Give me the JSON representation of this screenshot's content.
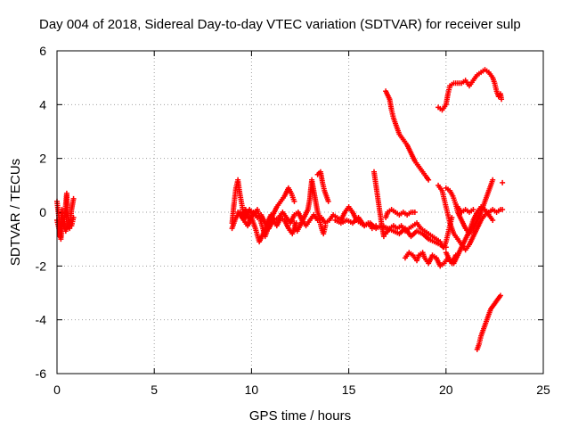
{
  "chart_data": {
    "type": "scatter",
    "title": "Day 004 of 2018, Sidereal Day-to-day VTEC variation (SDTVAR) for receiver sulp",
    "xlabel": "GPS time / hours",
    "ylabel": "SDTVAR / TECUs",
    "xlim": [
      0,
      25
    ],
    "ylim": [
      -6,
      6
    ],
    "xticks": [
      0,
      5,
      10,
      15,
      20,
      25
    ],
    "yticks": [
      -6,
      -4,
      -2,
      0,
      2,
      4,
      6
    ],
    "grid": true,
    "marker": "plus",
    "color": "#ff0000",
    "tracks": [
      [
        [
          0.0,
          0.4
        ],
        [
          0.1,
          -0.2
        ],
        [
          0.15,
          -0.9
        ],
        [
          0.25,
          0.1
        ],
        [
          0.35,
          -0.5
        ],
        [
          0.45,
          0.3
        ],
        [
          0.5,
          0.7
        ],
        [
          0.55,
          -0.1
        ],
        [
          0.65,
          -0.6
        ],
        [
          0.75,
          0.1
        ],
        [
          0.85,
          0.5
        ]
      ],
      [
        [
          0.0,
          -0.3
        ],
        [
          0.1,
          -0.6
        ],
        [
          0.2,
          -1.0
        ],
        [
          0.3,
          -0.4
        ],
        [
          0.45,
          -0.7
        ],
        [
          0.6,
          -0.3
        ],
        [
          0.75,
          -0.5
        ],
        [
          0.85,
          -0.2
        ]
      ],
      [
        [
          9.0,
          -0.4
        ],
        [
          9.1,
          0.3
        ],
        [
          9.2,
          0.9
        ],
        [
          9.3,
          1.2
        ],
        [
          9.4,
          0.7
        ],
        [
          9.55,
          0.1
        ],
        [
          9.7,
          -0.2
        ],
        [
          9.9,
          0.1
        ],
        [
          10.1,
          -0.1
        ],
        [
          10.3,
          0.1
        ],
        [
          10.5,
          -0.4
        ],
        [
          10.7,
          -0.9
        ],
        [
          10.9,
          -0.5
        ],
        [
          11.1,
          -0.1
        ],
        [
          11.3,
          0.2
        ],
        [
          11.5,
          0.4
        ],
        [
          11.7,
          0.6
        ],
        [
          11.9,
          0.9
        ],
        [
          12.05,
          0.7
        ],
        [
          12.2,
          0.4
        ]
      ],
      [
        [
          9.0,
          -0.6
        ],
        [
          9.2,
          -0.2
        ],
        [
          9.4,
          0.0
        ],
        [
          9.6,
          -0.3
        ],
        [
          9.8,
          -0.5
        ],
        [
          10.0,
          -0.2
        ],
        [
          10.2,
          -0.6
        ],
        [
          10.4,
          -1.1
        ],
        [
          10.6,
          -0.8
        ],
        [
          10.8,
          -0.4
        ],
        [
          11.0,
          -0.1
        ],
        [
          11.2,
          -0.3
        ],
        [
          11.4,
          -0.2
        ],
        [
          11.6,
          0.0
        ],
        [
          11.8,
          -0.2
        ],
        [
          12.0,
          -0.4
        ],
        [
          12.2,
          -0.1
        ],
        [
          12.4,
          0.0
        ],
        [
          12.6,
          -0.3
        ],
        [
          12.8,
          -0.5
        ],
        [
          13.0,
          -0.3
        ],
        [
          13.2,
          -0.1
        ],
        [
          13.4,
          -0.3
        ],
        [
          13.6,
          -0.2
        ],
        [
          13.8,
          -0.4
        ],
        [
          14.0,
          -0.3
        ],
        [
          14.2,
          -0.1
        ],
        [
          14.4,
          -0.2
        ],
        [
          14.6,
          -0.3
        ],
        [
          14.8,
          0.0
        ],
        [
          15.0,
          0.2
        ],
        [
          15.2,
          0.0
        ],
        [
          15.4,
          -0.3
        ],
        [
          15.6,
          -0.4
        ],
        [
          15.8,
          -0.5
        ],
        [
          16.0,
          -0.4
        ],
        [
          16.2,
          -0.6
        ],
        [
          16.4,
          -0.5
        ]
      ],
      [
        [
          9.3,
          0.0
        ],
        [
          9.5,
          -0.2
        ],
        [
          9.7,
          0.1
        ],
        [
          9.9,
          -0.3
        ],
        [
          10.1,
          0.0
        ],
        [
          10.3,
          -0.2
        ],
        [
          10.5,
          -0.1
        ],
        [
          10.7,
          -0.4
        ],
        [
          10.9,
          -0.6
        ],
        [
          11.1,
          -0.3
        ],
        [
          11.3,
          -0.5
        ],
        [
          11.5,
          -0.2
        ],
        [
          11.7,
          -0.3
        ],
        [
          11.9,
          -0.6
        ],
        [
          12.1,
          -0.8
        ],
        [
          12.3,
          -0.4
        ]
      ],
      [
        [
          12.2,
          -0.4
        ],
        [
          12.35,
          -0.7
        ],
        [
          12.5,
          -0.5
        ],
        [
          12.7,
          -0.2
        ],
        [
          12.9,
          0.1
        ],
        [
          13.0,
          0.5
        ],
        [
          13.05,
          0.9
        ],
        [
          13.1,
          1.2
        ],
        [
          13.2,
          0.8
        ],
        [
          13.3,
          0.4
        ],
        [
          13.4,
          0.0
        ],
        [
          13.5,
          -0.2
        ]
      ],
      [
        [
          13.4,
          1.4
        ],
        [
          13.55,
          1.5
        ],
        [
          13.65,
          1.1
        ],
        [
          13.75,
          0.8
        ],
        [
          13.85,
          0.6
        ],
        [
          13.95,
          0.4
        ]
      ],
      [
        [
          13.5,
          -0.3
        ],
        [
          13.6,
          -0.6
        ],
        [
          13.7,
          -0.8
        ],
        [
          13.8,
          -0.5
        ]
      ],
      [
        [
          14.3,
          -0.3
        ],
        [
          14.6,
          -0.4
        ],
        [
          14.9,
          -0.3
        ],
        [
          15.2,
          -0.4
        ],
        [
          15.5,
          -0.2
        ],
        [
          15.8,
          -0.5
        ],
        [
          16.1,
          -0.4
        ],
        [
          16.4,
          -0.6
        ],
        [
          16.7,
          -0.5
        ],
        [
          17.0,
          -0.6
        ],
        [
          17.3,
          -0.7
        ],
        [
          17.6,
          -0.8
        ],
        [
          17.9,
          -0.6
        ],
        [
          18.2,
          -0.9
        ],
        [
          18.5,
          -0.7
        ],
        [
          18.8,
          -0.8
        ],
        [
          19.1,
          -1.0
        ],
        [
          19.4,
          -1.1
        ],
        [
          19.7,
          -1.2
        ],
        [
          19.9,
          -1.3
        ],
        [
          20.0,
          -1.1
        ],
        [
          20.1,
          -0.8
        ],
        [
          20.2,
          -0.5
        ],
        [
          20.3,
          -0.2
        ]
      ],
      [
        [
          16.3,
          1.5
        ],
        [
          16.4,
          1.0
        ],
        [
          16.5,
          0.5
        ],
        [
          16.6,
          0.0
        ],
        [
          16.7,
          -0.5
        ],
        [
          16.8,
          -0.9
        ]
      ],
      [
        [
          16.9,
          -0.2
        ],
        [
          17.0,
          0.0
        ],
        [
          17.2,
          0.1
        ],
        [
          17.4,
          0.0
        ],
        [
          17.6,
          -0.1
        ],
        [
          17.8,
          0.0
        ],
        [
          18.0,
          -0.1
        ],
        [
          18.2,
          0.0
        ],
        [
          18.4,
          0.0
        ]
      ],
      [
        [
          16.9,
          4.5
        ],
        [
          17.1,
          4.2
        ],
        [
          17.2,
          3.8
        ],
        [
          17.3,
          3.5
        ],
        [
          17.4,
          3.3
        ],
        [
          17.5,
          3.1
        ],
        [
          17.6,
          2.9
        ],
        [
          17.8,
          2.7
        ],
        [
          18.0,
          2.5
        ],
        [
          18.2,
          2.2
        ],
        [
          18.4,
          1.9
        ],
        [
          18.6,
          1.7
        ],
        [
          18.8,
          1.5
        ],
        [
          19.0,
          1.3
        ],
        [
          19.1,
          1.2
        ]
      ],
      [
        [
          16.9,
          -0.8
        ],
        [
          17.1,
          -0.6
        ],
        [
          17.3,
          -0.5
        ],
        [
          17.5,
          -0.6
        ],
        [
          17.7,
          -0.5
        ],
        [
          17.9,
          -0.7
        ],
        [
          18.1,
          -0.6
        ],
        [
          18.3,
          -0.5
        ],
        [
          18.5,
          -0.4
        ],
        [
          18.7,
          -0.6
        ],
        [
          18.9,
          -0.7
        ],
        [
          19.1,
          -0.8
        ],
        [
          19.3,
          -0.9
        ],
        [
          19.5,
          -1.0
        ],
        [
          19.7,
          -1.1
        ],
        [
          19.85,
          -1.3
        ],
        [
          20.0,
          -1.3
        ]
      ],
      [
        [
          17.9,
          -1.7
        ],
        [
          18.1,
          -1.5
        ],
        [
          18.3,
          -1.6
        ],
        [
          18.5,
          -1.8
        ],
        [
          18.6,
          -1.6
        ],
        [
          18.8,
          -1.5
        ],
        [
          18.9,
          -1.7
        ],
        [
          19.1,
          -1.9
        ],
        [
          19.3,
          -1.6
        ],
        [
          19.5,
          -1.7
        ],
        [
          19.7,
          -2.0
        ],
        [
          19.9,
          -1.9
        ],
        [
          20.1,
          -1.7
        ],
        [
          20.3,
          -1.9
        ],
        [
          20.5,
          -1.6
        ]
      ],
      [
        [
          19.6,
          1.0
        ],
        [
          19.8,
          0.8
        ],
        [
          19.9,
          0.5
        ],
        [
          20.0,
          0.2
        ],
        [
          20.1,
          -0.1
        ],
        [
          20.2,
          -0.4
        ],
        [
          20.4,
          -0.8
        ],
        [
          20.6,
          -1.0
        ],
        [
          20.8,
          -1.2
        ],
        [
          21.0,
          -1.4
        ],
        [
          21.2,
          -1.2
        ],
        [
          21.4,
          -0.9
        ],
        [
          21.6,
          -0.6
        ],
        [
          21.8,
          -0.3
        ],
        [
          22.0,
          -0.1
        ],
        [
          22.2,
          0.0
        ],
        [
          22.4,
          0.1
        ],
        [
          22.6,
          0.0
        ],
        [
          22.8,
          0.1
        ],
        [
          22.9,
          0.1
        ]
      ],
      [
        [
          20.0,
          0.9
        ],
        [
          20.2,
          0.8
        ],
        [
          20.35,
          0.6
        ],
        [
          20.5,
          0.3
        ],
        [
          20.6,
          0.0
        ],
        [
          20.8,
          -0.3
        ],
        [
          21.0,
          -0.6
        ],
        [
          21.2,
          -0.8
        ],
        [
          21.4,
          -0.6
        ],
        [
          21.6,
          -0.3
        ],
        [
          21.8,
          0.0
        ],
        [
          22.0,
          0.4
        ],
        [
          22.2,
          0.8
        ],
        [
          22.3,
          1.0
        ],
        [
          22.4,
          1.2
        ]
      ],
      [
        [
          20.0,
          -1.5
        ],
        [
          20.2,
          -1.8
        ],
        [
          20.4,
          -1.9
        ],
        [
          20.6,
          -1.6
        ],
        [
          20.8,
          -1.3
        ],
        [
          21.0,
          -1.0
        ],
        [
          21.2,
          -0.7
        ],
        [
          21.4,
          -0.3
        ],
        [
          21.6,
          0.0
        ],
        [
          21.8,
          0.2
        ],
        [
          22.0,
          0.1
        ],
        [
          22.2,
          -0.1
        ],
        [
          22.4,
          -0.3
        ]
      ],
      [
        [
          20.6,
          0.2
        ],
        [
          20.8,
          0.0
        ],
        [
          21.0,
          0.1
        ],
        [
          21.2,
          0.0
        ],
        [
          21.4,
          0.1
        ]
      ],
      [
        [
          19.6,
          3.9
        ],
        [
          19.8,
          3.8
        ],
        [
          20.0,
          4.0
        ],
        [
          20.1,
          4.4
        ],
        [
          20.2,
          4.7
        ],
        [
          20.4,
          4.8
        ],
        [
          20.6,
          4.8
        ],
        [
          20.8,
          4.8
        ],
        [
          21.0,
          4.9
        ],
        [
          21.2,
          4.7
        ],
        [
          21.4,
          4.9
        ],
        [
          21.6,
          5.1
        ],
        [
          21.8,
          5.2
        ],
        [
          22.0,
          5.3
        ],
        [
          22.2,
          5.2
        ],
        [
          22.4,
          5.0
        ],
        [
          22.5,
          4.8
        ],
        [
          22.6,
          4.5
        ],
        [
          22.7,
          4.3
        ],
        [
          22.8,
          4.4
        ],
        [
          22.85,
          4.2
        ]
      ],
      [
        [
          21.6,
          -5.1
        ],
        [
          21.7,
          -4.9
        ],
        [
          21.8,
          -4.6
        ],
        [
          21.9,
          -4.4
        ],
        [
          22.0,
          -4.2
        ],
        [
          22.1,
          -4.0
        ],
        [
          22.2,
          -3.8
        ],
        [
          22.3,
          -3.6
        ],
        [
          22.4,
          -3.5
        ],
        [
          22.5,
          -3.4
        ],
        [
          22.6,
          -3.3
        ],
        [
          22.7,
          -3.2
        ],
        [
          22.8,
          -3.1
        ]
      ],
      [
        [
          22.9,
          1.1
        ]
      ]
    ]
  }
}
